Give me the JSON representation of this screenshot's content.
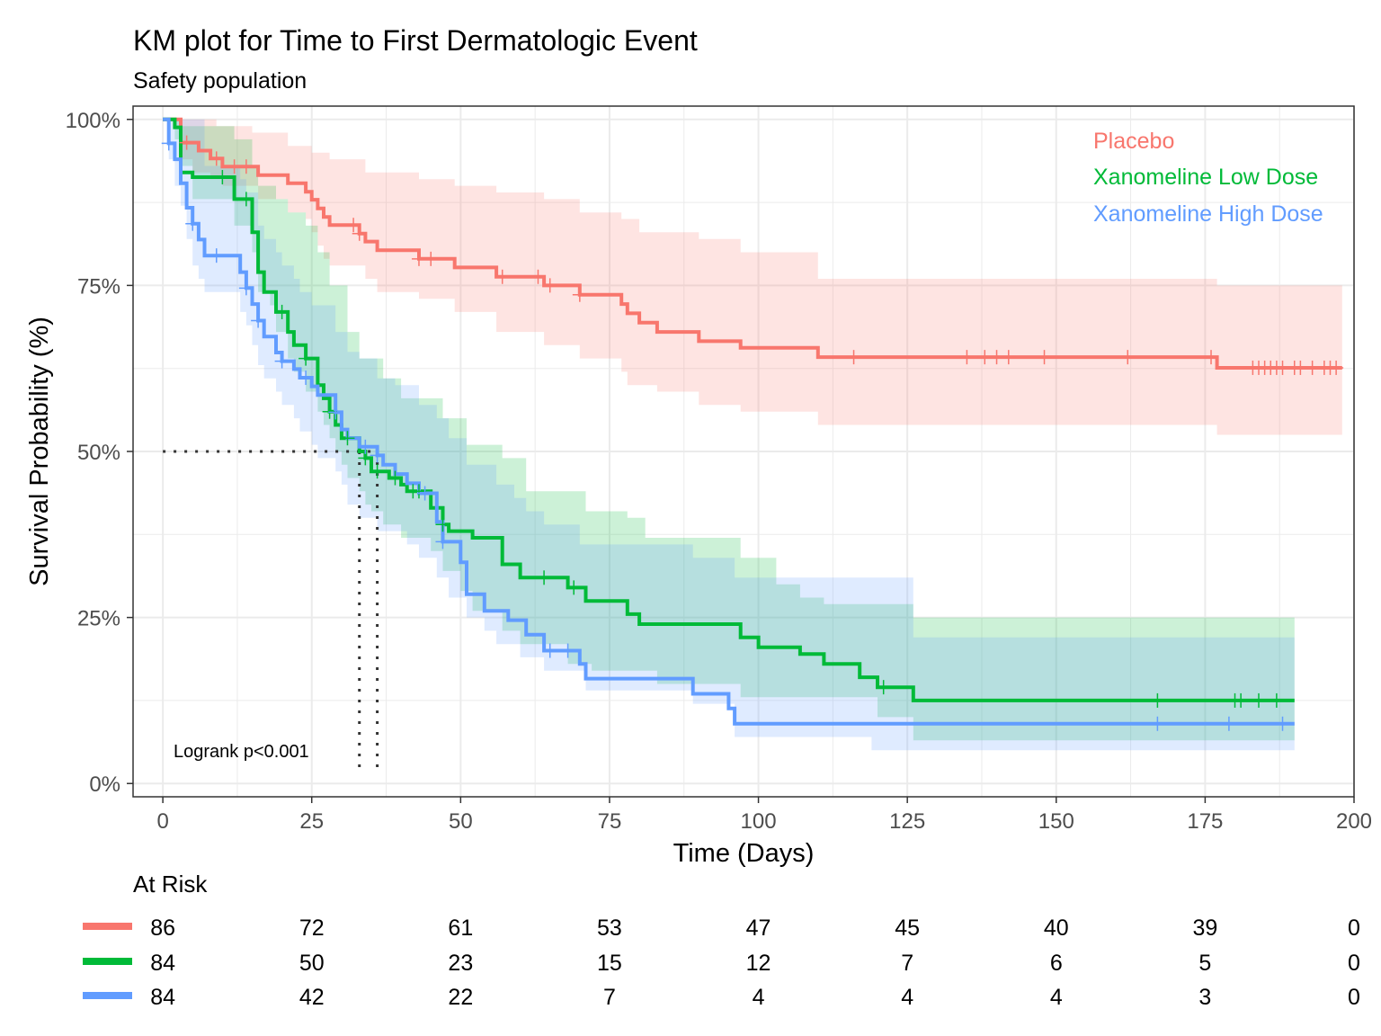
{
  "colors": {
    "placebo": "#F8766D",
    "low_dose": "#00BA38",
    "high_dose": "#619CFF",
    "grid": "#EBEBEB",
    "axis_text": "#4D4D4D",
    "median_line": "#333333"
  },
  "chart_data": {
    "type": "line",
    "subtype": "kaplan-meier",
    "title": "KM plot for Time to First Dermatologic Event",
    "subtitle": "Safety population",
    "xlabel": "Time (Days)",
    "ylabel": "Survival Probability (%)",
    "xlim": [
      -5,
      200
    ],
    "ylim": [
      -2,
      102
    ],
    "x_ticks": [
      0,
      25,
      50,
      75,
      100,
      125,
      150,
      175,
      200
    ],
    "x_tick_labels": [
      "0",
      "25",
      "50",
      "75",
      "100",
      "125",
      "150",
      "175",
      "200"
    ],
    "y_ticks": [
      0,
      25,
      50,
      75,
      100
    ],
    "y_tick_labels": [
      "0%",
      "25%",
      "50%",
      "75%",
      "100%"
    ],
    "grid": true,
    "legend_position": "top-right",
    "annotation": "Logrank p<0.001",
    "median_survival": [
      {
        "series": "Xanomeline Low Dose",
        "time": 33
      },
      {
        "series": "Xanomeline High Dose",
        "time": 36
      }
    ],
    "series": [
      {
        "name": "Placebo",
        "color": "#F8766D",
        "steps": [
          [
            0,
            100
          ],
          [
            3,
            97.7
          ],
          [
            3,
            96.5
          ],
          [
            6,
            95.3
          ],
          [
            8,
            94.1
          ],
          [
            10,
            92.9
          ],
          [
            16,
            91.6
          ],
          [
            21,
            90.4
          ],
          [
            24,
            89.1
          ],
          [
            25,
            87.9
          ],
          [
            26,
            86.6
          ],
          [
            27,
            85.3
          ],
          [
            28,
            84.1
          ],
          [
            33,
            82.8
          ],
          [
            34,
            81.6
          ],
          [
            36,
            80.3
          ],
          [
            43,
            79.0
          ],
          [
            49,
            77.7
          ],
          [
            56,
            76.3
          ],
          [
            64,
            75.0
          ],
          [
            70,
            73.6
          ],
          [
            77,
            72.2
          ],
          [
            78,
            70.8
          ],
          [
            80,
            69.4
          ],
          [
            83,
            68.0
          ],
          [
            90,
            66.6
          ],
          [
            97,
            65.6
          ],
          [
            110,
            64.2
          ],
          [
            177,
            62.6
          ],
          [
            198,
            62.6
          ]
        ],
        "lower": [
          [
            0,
            100
          ],
          [
            3,
            94
          ],
          [
            5,
            92
          ],
          [
            8,
            91
          ],
          [
            10,
            90
          ],
          [
            16,
            88
          ],
          [
            21,
            86
          ],
          [
            24,
            85
          ],
          [
            25,
            83
          ],
          [
            26,
            81
          ],
          [
            27,
            79
          ],
          [
            28,
            78
          ],
          [
            34,
            76
          ],
          [
            36,
            74
          ],
          [
            43,
            73
          ],
          [
            49,
            71
          ],
          [
            56,
            68
          ],
          [
            64,
            66
          ],
          [
            70,
            64
          ],
          [
            77,
            62
          ],
          [
            78,
            60
          ],
          [
            83,
            59
          ],
          [
            90,
            57
          ],
          [
            97,
            56
          ],
          [
            110,
            54
          ],
          [
            177,
            52.5
          ],
          [
            198,
            52.5
          ]
        ],
        "upper": [
          [
            0,
            100
          ],
          [
            9,
            99
          ],
          [
            15,
            98
          ],
          [
            21,
            96
          ],
          [
            25,
            95
          ],
          [
            28,
            94
          ],
          [
            34,
            92
          ],
          [
            43,
            91
          ],
          [
            49,
            90
          ],
          [
            56,
            89
          ],
          [
            64,
            88
          ],
          [
            70,
            86
          ],
          [
            77,
            85
          ],
          [
            80,
            83
          ],
          [
            90,
            82
          ],
          [
            97,
            80
          ],
          [
            110,
            76
          ],
          [
            177,
            75
          ],
          [
            198,
            75
          ]
        ],
        "censor_times": [
          4,
          9,
          12,
          14,
          32,
          33,
          43,
          45,
          57,
          63,
          65,
          70,
          116,
          135,
          138,
          140,
          142,
          148,
          162,
          176,
          183,
          184,
          185,
          186,
          187,
          188,
          190,
          191,
          193,
          195,
          196,
          197
        ],
        "at_risk": [
          86,
          72,
          61,
          53,
          47,
          45,
          40,
          39,
          0
        ]
      },
      {
        "name": "Xanomeline Low Dose",
        "color": "#00BA38",
        "steps": [
          [
            0,
            100
          ],
          [
            2,
            98.8
          ],
          [
            3,
            92.0
          ],
          [
            5,
            91.3
          ],
          [
            12,
            88
          ],
          [
            15,
            83
          ],
          [
            16,
            77
          ],
          [
            17,
            74
          ],
          [
            19,
            71
          ],
          [
            21,
            68
          ],
          [
            22,
            66
          ],
          [
            24,
            64
          ],
          [
            26,
            60
          ],
          [
            27,
            58
          ],
          [
            28,
            56
          ],
          [
            29,
            54
          ],
          [
            30,
            52
          ],
          [
            33,
            50
          ],
          [
            34,
            49
          ],
          [
            35,
            47
          ],
          [
            38,
            46
          ],
          [
            40,
            45
          ],
          [
            41,
            44
          ],
          [
            45,
            41.5
          ],
          [
            47,
            39
          ],
          [
            48,
            38
          ],
          [
            52,
            37
          ],
          [
            57,
            33
          ],
          [
            60,
            31
          ],
          [
            68,
            29.5
          ],
          [
            71,
            27.5
          ],
          [
            78,
            25.5
          ],
          [
            80,
            24
          ],
          [
            97,
            22
          ],
          [
            100,
            20.5
          ],
          [
            107,
            19.5
          ],
          [
            111,
            18
          ],
          [
            117,
            16
          ],
          [
            120,
            14.5
          ],
          [
            126,
            12.5
          ],
          [
            190,
            12.5
          ]
        ],
        "lower": [
          [
            0,
            100
          ],
          [
            2,
            97
          ],
          [
            3,
            93
          ],
          [
            5,
            88
          ],
          [
            12,
            84
          ],
          [
            15,
            80
          ],
          [
            16,
            74
          ],
          [
            18,
            72
          ],
          [
            19,
            68
          ],
          [
            21,
            64
          ],
          [
            22,
            62
          ],
          [
            24,
            59
          ],
          [
            26,
            56
          ],
          [
            27,
            54
          ],
          [
            28,
            52
          ],
          [
            29,
            50
          ],
          [
            30,
            48
          ],
          [
            31,
            46
          ],
          [
            33,
            44
          ],
          [
            34,
            42
          ],
          [
            35,
            41
          ],
          [
            37,
            39
          ],
          [
            40,
            37
          ],
          [
            45,
            35
          ],
          [
            47,
            32
          ],
          [
            50,
            29
          ],
          [
            52,
            26
          ],
          [
            57,
            23
          ],
          [
            60,
            21
          ],
          [
            68,
            18
          ],
          [
            72,
            17
          ],
          [
            83,
            15
          ],
          [
            97,
            13
          ],
          [
            120,
            10
          ],
          [
            126,
            6.5
          ],
          [
            190,
            6.5
          ]
        ],
        "upper": [
          [
            0,
            100
          ],
          [
            3,
            99
          ],
          [
            12,
            97
          ],
          [
            15,
            93
          ],
          [
            16,
            90
          ],
          [
            19,
            88
          ],
          [
            21,
            86
          ],
          [
            24,
            84
          ],
          [
            26,
            80
          ],
          [
            28,
            75
          ],
          [
            31,
            68
          ],
          [
            33,
            64
          ],
          [
            37,
            61
          ],
          [
            40,
            58
          ],
          [
            47,
            55
          ],
          [
            51,
            51
          ],
          [
            57,
            49
          ],
          [
            61,
            44
          ],
          [
            71,
            41
          ],
          [
            78,
            40
          ],
          [
            81,
            37
          ],
          [
            97,
            34
          ],
          [
            103,
            30
          ],
          [
            107,
            28
          ],
          [
            111,
            27
          ],
          [
            126,
            25
          ],
          [
            190,
            25
          ]
        ],
        "censor_times": [
          10,
          14,
          20,
          24,
          28,
          31,
          34,
          36,
          39,
          42,
          43,
          47,
          64,
          69,
          121,
          167,
          180,
          181,
          184,
          187
        ],
        "at_risk": [
          84,
          50,
          23,
          15,
          12,
          7,
          6,
          5,
          0
        ]
      },
      {
        "name": "Xanomeline High Dose",
        "color": "#619CFF",
        "steps": [
          [
            0,
            100
          ],
          [
            1,
            96.4
          ],
          [
            2,
            94.0
          ],
          [
            3,
            90.4
          ],
          [
            4,
            86.7
          ],
          [
            5,
            84.3
          ],
          [
            6,
            81.9
          ],
          [
            7,
            79.5
          ],
          [
            13,
            77.0
          ],
          [
            14,
            74.6
          ],
          [
            15,
            72.2
          ],
          [
            16,
            69.7
          ],
          [
            17,
            67.3
          ],
          [
            19,
            64.9
          ],
          [
            20,
            63.6
          ],
          [
            22,
            62.4
          ],
          [
            23,
            61.1
          ],
          [
            25,
            59.8
          ],
          [
            26,
            58.5
          ],
          [
            29,
            55.9
          ],
          [
            30,
            53.3
          ],
          [
            31,
            52.0
          ],
          [
            33,
            50.7
          ],
          [
            36,
            49.4
          ],
          [
            37,
            48.0
          ],
          [
            39,
            46.6
          ],
          [
            41,
            45.2
          ],
          [
            43,
            43.7
          ],
          [
            46,
            39.4
          ],
          [
            47,
            36.4
          ],
          [
            50,
            33.3
          ],
          [
            51,
            28.5
          ],
          [
            54,
            26.0
          ],
          [
            58,
            24.6
          ],
          [
            61,
            22.4
          ],
          [
            64,
            20.0
          ],
          [
            70,
            18.0
          ],
          [
            71,
            15.8
          ],
          [
            89,
            13.5
          ],
          [
            95,
            11.3
          ],
          [
            96,
            9.0
          ],
          [
            190,
            9.0
          ]
        ],
        "lower": [
          [
            0,
            100
          ],
          [
            1,
            94
          ],
          [
            2,
            90
          ],
          [
            3,
            87
          ],
          [
            4,
            82
          ],
          [
            5,
            78
          ],
          [
            6,
            76
          ],
          [
            7,
            74
          ],
          [
            13,
            71
          ],
          [
            14,
            69
          ],
          [
            15,
            66
          ],
          [
            16,
            63
          ],
          [
            17,
            61
          ],
          [
            19,
            59
          ],
          [
            20,
            57
          ],
          [
            22,
            55
          ],
          [
            23,
            53
          ],
          [
            25,
            51
          ],
          [
            26,
            49
          ],
          [
            29,
            47
          ],
          [
            30,
            45
          ],
          [
            31,
            42
          ],
          [
            33,
            40
          ],
          [
            36,
            38
          ],
          [
            41,
            36
          ],
          [
            43,
            34
          ],
          [
            46,
            31
          ],
          [
            48,
            28
          ],
          [
            51,
            25
          ],
          [
            54,
            23
          ],
          [
            56,
            21
          ],
          [
            60,
            19
          ],
          [
            64,
            17
          ],
          [
            71,
            14
          ],
          [
            89,
            12
          ],
          [
            96,
            7
          ],
          [
            119,
            5
          ],
          [
            188,
            5
          ]
        ],
        "upper": [
          [
            0,
            100
          ],
          [
            7,
            93
          ],
          [
            13,
            91
          ],
          [
            14,
            89
          ],
          [
            16,
            84
          ],
          [
            17,
            82
          ],
          [
            19,
            80
          ],
          [
            20,
            78
          ],
          [
            22,
            76
          ],
          [
            23,
            74
          ],
          [
            25,
            72
          ],
          [
            29,
            68
          ],
          [
            31,
            65
          ],
          [
            33,
            64
          ],
          [
            36,
            61
          ],
          [
            39,
            60
          ],
          [
            43,
            57
          ],
          [
            46,
            55
          ],
          [
            48,
            52
          ],
          [
            51,
            48
          ],
          [
            56,
            45
          ],
          [
            59,
            43
          ],
          [
            61,
            41
          ],
          [
            64,
            39
          ],
          [
            70,
            36
          ],
          [
            89,
            34
          ],
          [
            96,
            31
          ],
          [
            126,
            22
          ],
          [
            190,
            22
          ]
        ],
        "censor_times": [
          1,
          5,
          9,
          14,
          16,
          20,
          24,
          29,
          34,
          36,
          44,
          47,
          65,
          68,
          167,
          179,
          188
        ],
        "at_risk": [
          84,
          42,
          22,
          7,
          4,
          4,
          4,
          3,
          0
        ]
      }
    ],
    "at_risk_title": "At Risk",
    "at_risk_times": [
      0,
      25,
      50,
      75,
      100,
      125,
      150,
      175,
      200
    ]
  }
}
